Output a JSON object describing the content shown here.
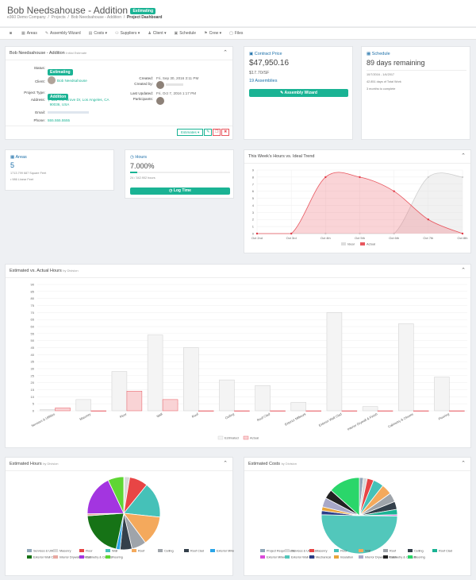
{
  "header": {
    "project_title": "Bob Needsahouse - Addition",
    "status_badge": "Estimating",
    "breadcrumb": [
      "e360 Demo Company",
      "Projects",
      "Bob Needsahouse - Addition",
      "Project Dashboard"
    ]
  },
  "nav": {
    "items": [
      {
        "icon": "camera-icon",
        "glyph": "◙",
        "label": ""
      },
      {
        "icon": "areas-icon",
        "glyph": "▦",
        "label": "Areas"
      },
      {
        "icon": "wizard-icon",
        "glyph": "✎",
        "label": "Assembly Wizard"
      },
      {
        "icon": "costs-icon",
        "glyph": "▤",
        "label": "Costs ▾"
      },
      {
        "icon": "suppliers-icon",
        "glyph": "⚇",
        "label": "Suppliers ▾"
      },
      {
        "icon": "client-icon",
        "glyph": "♟",
        "label": "Client ▾"
      },
      {
        "icon": "schedule-icon",
        "glyph": "▣",
        "label": "Schedule"
      },
      {
        "icon": "crew-icon",
        "glyph": "⚑",
        "label": "Crew ▾"
      },
      {
        "icon": "files-icon",
        "glyph": "▢",
        "label": "Files"
      }
    ]
  },
  "info": {
    "title": "Bob Needsahouse - Addition",
    "subtitle": "Initial Estimate",
    "status_label": "Status:",
    "status_value": "Estimating",
    "client_label": "Client:",
    "client_name": "Bob Needsahouse",
    "project_type_label": "Project Type:",
    "project_type_value": "Addition",
    "address_label": "Address:",
    "address_line1": "123 The Grove Dr, Los Angeles, CA",
    "address_line2": "90036, USA",
    "email_label": "Email:",
    "phone_label": "Phone:",
    "phone_value": "555.555.5555",
    "created_label": "Created:",
    "created_value": "Fri, Sep 30, 2016 3:11 PM",
    "created_by_label": "Created by:",
    "updated_label": "Last Updated:",
    "updated_value": "Fri, Oct 7, 2016 1:17 PM",
    "participants_label": "Participants:",
    "estimates_button": "Estimates ▾"
  },
  "contract": {
    "title": "Contract Price",
    "price": "$47,950.16",
    "per_sf": "$17.70/SF",
    "assemblies": "19 Assemblies",
    "button": "Assembly Wizard"
  },
  "schedule": {
    "title": "Schedule",
    "remaining": "89 days remaining",
    "dates": "10/7/2016 - 1/4/2017",
    "work_days": "42.851 days of Total Work",
    "months": "3 months to complete"
  },
  "areas": {
    "title": "Areas",
    "count": "5",
    "square_feet": "1713.799 687 Square Feet",
    "linear_feet": "• 986 Linear Feet"
  },
  "hours": {
    "title": "Hours",
    "percent": "7.000%",
    "progress": 0.07,
    "detail": "24 / 342.902 hours",
    "button": "Log Time"
  },
  "colors": {
    "accent": "#1ab394",
    "actual": "#f4b6b9",
    "actual_stroke": "#e8575f",
    "estimated": "#f4f4f4"
  },
  "chart_data": [
    {
      "type": "area",
      "title": "This Week's Hours vs. Ideal Trend",
      "x": [
        "Oct 2nd",
        "Oct 3rd",
        "Oct 4th",
        "Oct 5th",
        "Oct 6th",
        "Oct 7th",
        "Oct 8th"
      ],
      "ylim": [
        0,
        9
      ],
      "yticks": [
        0,
        1,
        2,
        3,
        4,
        5,
        6,
        7,
        8,
        9
      ],
      "series": [
        {
          "name": "Ideal",
          "values": [
            0,
            0,
            0,
            0,
            0,
            8,
            8
          ]
        },
        {
          "name": "Actual",
          "values": [
            0,
            0,
            8,
            8,
            6,
            2,
            0
          ]
        }
      ],
      "legend_position": "bottom"
    },
    {
      "type": "bar",
      "title": "Estimated vs. Actual Hours",
      "subtitle": "by Division",
      "categories": [
        "Services & Utilities",
        "Masonry",
        "Floor",
        "Wall",
        "Roof",
        "Ceiling",
        "Roof Clad",
        "Exterior Millwork",
        "Exterior Wall Clad",
        "Interior Drywall & Finish",
        "Cabinetry & Closets",
        "Flooring"
      ],
      "ylim": [
        0,
        90
      ],
      "yticks": [
        0,
        5,
        10,
        15,
        20,
        25,
        30,
        35,
        40,
        45,
        50,
        55,
        60,
        65,
        70,
        75,
        80,
        85,
        90
      ],
      "series": [
        {
          "name": "Estimated",
          "values": [
            1,
            8,
            28,
            54,
            45,
            22,
            18,
            6,
            70,
            3,
            62,
            24
          ]
        },
        {
          "name": "Actual",
          "values": [
            2,
            0,
            14,
            8,
            0,
            0,
            0,
            0,
            0,
            0,
            0,
            0
          ]
        }
      ],
      "legend_position": "bottom"
    },
    {
      "type": "pie",
      "title": "Estimated Hours",
      "subtitle": "by Division",
      "labels": [
        "Services & Utilities",
        "Masonry",
        "Floor",
        "Wall",
        "Roof",
        "Ceiling",
        "Roof Clad",
        "Exterior Millwork",
        "Exterior Wall Clad",
        "Interior Drywall & Finish",
        "Cabinetry & Closets",
        "Flooring"
      ],
      "values": [
        1,
        8,
        28,
        54,
        45,
        22,
        18,
        6,
        70,
        3,
        62,
        24
      ],
      "colors": [
        "#8fa6b8",
        "#d9d9d9",
        "#e84545",
        "#45c1b8",
        "#f4a95c",
        "#9fa4aa",
        "#34404b",
        "#2aa5e8",
        "#167316",
        "#e8a8a0",
        "#a335e0",
        "#5fd634"
      ],
      "legend_position": "bottom"
    },
    {
      "type": "pie",
      "title": "Estimated Costs",
      "subtitle": "by Division",
      "labels": [
        "Project Requirements",
        "Services & Utilities",
        "Masonry",
        "Floor",
        "Wall",
        "Roof",
        "Ceiling",
        "Roof Clad",
        "Exterior Millwork",
        "Exterior Wall Clad",
        "Mechanical",
        "Insulation",
        "Interior Drywall & Finish",
        "Cabinetry & Closets",
        "Flooring"
      ],
      "values": [
        1.5,
        1.5,
        2.5,
        4,
        4,
        3.5,
        3,
        2,
        0.5,
        45,
        1.5,
        1.5,
        3.5,
        3.5,
        12
      ],
      "colors": [
        "#8fa6b8",
        "#d9d9d9",
        "#e84545",
        "#45c1b8",
        "#f4a95c",
        "#9fa4aa",
        "#34404b",
        "#1ab394",
        "#d94ad9",
        "#52c7bb",
        "#2c3e88",
        "#e8a43a",
        "#a8a8c8",
        "#222222",
        "#2ad66a"
      ],
      "legend_position": "bottom"
    }
  ]
}
